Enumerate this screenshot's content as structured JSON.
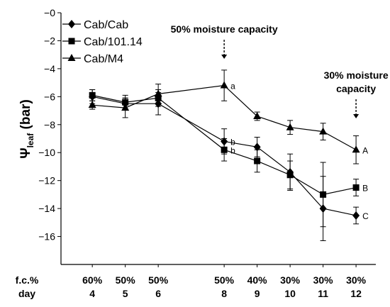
{
  "chart_data": {
    "type": "line",
    "ylabel": {
      "main": "Ψ",
      "sub": "leaf",
      "unit": "(bar)"
    },
    "ylim": [
      -18,
      0
    ],
    "yticks": [
      0,
      -2,
      -4,
      -6,
      -8,
      -10,
      -12,
      -14,
      -16
    ],
    "ytick_labels": [
      "−0",
      "−2",
      "−4",
      "−6",
      "−8",
      "−10",
      "−12",
      "−14",
      "−16"
    ],
    "row_labels": {
      "fc": "f.c.%",
      "day": "day"
    },
    "categories": [
      {
        "fc": "60%",
        "day": "4",
        "x": 4
      },
      {
        "fc": "50%",
        "day": "5",
        "x": 5
      },
      {
        "fc": "50%",
        "day": "6",
        "x": 6
      },
      {
        "fc": "50%",
        "day": "8",
        "x": 8
      },
      {
        "fc": "40%",
        "day": "9",
        "x": 9
      },
      {
        "fc": "30%",
        "day": "10",
        "x": 10
      },
      {
        "fc": "30%",
        "day": "11",
        "x": 11
      },
      {
        "fc": "30%",
        "day": "12",
        "x": 12
      }
    ],
    "series": [
      {
        "name": "Cab/Cab",
        "marker": "diamond",
        "values": [
          -6.0,
          -6.5,
          -6.5,
          -9.2,
          -9.6,
          -11.4,
          -14.0,
          -14.5
        ],
        "err": [
          0.5,
          0.4,
          0.8,
          0.9,
          0.7,
          1.3,
          2.3,
          0.6
        ]
      },
      {
        "name": "Cab/101.14",
        "marker": "square",
        "values": [
          -5.9,
          -6.4,
          -6.1,
          -9.8,
          -10.6,
          -11.6,
          -13.0,
          -12.5
        ],
        "err": [
          0.4,
          0.5,
          0.6,
          0.8,
          0.8,
          1.0,
          2.3,
          0.6
        ]
      },
      {
        "name": "Cab/M4",
        "marker": "triangle",
        "values": [
          -6.6,
          -6.8,
          -5.8,
          -5.2,
          -7.4,
          -8.2,
          -8.5,
          -9.8
        ],
        "err": [
          0.3,
          0.7,
          0.7,
          1.1,
          0.3,
          0.5,
          0.6,
          1.0
        ]
      }
    ],
    "point_letters": [
      {
        "text": "a",
        "series": "Cab/M4",
        "x": 8
      },
      {
        "text": "b",
        "series": "Cab/Cab",
        "x": 8
      },
      {
        "text": "b",
        "series": "Cab/101.14",
        "x": 8
      },
      {
        "text": "A",
        "series": "Cab/M4",
        "x": 12
      },
      {
        "text": "B",
        "series": "Cab/101.14",
        "x": 12
      },
      {
        "text": "C",
        "series": "Cab/Cab",
        "x": 12
      }
    ],
    "annotations": [
      {
        "lines": [
          "50% moisture capacity"
        ],
        "x": 8
      },
      {
        "lines": [
          "30% moisture",
          "capacity"
        ],
        "x": 12
      }
    ],
    "legend_position": "top-left",
    "grid": false
  }
}
